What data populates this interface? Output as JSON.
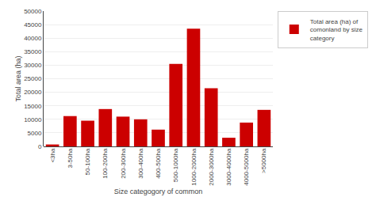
{
  "chart_data": {
    "type": "bar",
    "xlabel": "Size categogory of common",
    "ylabel": "Total area (ha)",
    "categories": [
      "<3ha",
      "3-50ha",
      "50-100ha",
      "100-200ha",
      "200-300ha",
      "300-400ha",
      "400-500ha",
      "500-1000ha",
      "1000-2000ha",
      "2000-3000ha",
      "3000-4000ha",
      "4000-5000ha",
      ">5000ha"
    ],
    "series": [
      {
        "name": "Total area (ha) of\ncomonland by size\ncategory",
        "color": "#CC0000",
        "values": [
          710,
          11200,
          9500,
          13800,
          11000,
          10000,
          6200,
          30500,
          43500,
          21500,
          3200,
          8800,
          13500
        ]
      }
    ],
    "ylim": [
      0,
      50000
    ],
    "yticks": [
      0,
      5000,
      10000,
      15000,
      20000,
      25000,
      30000,
      35000,
      40000,
      45000,
      50000
    ],
    "grid": true,
    "legend": "upper right"
  }
}
